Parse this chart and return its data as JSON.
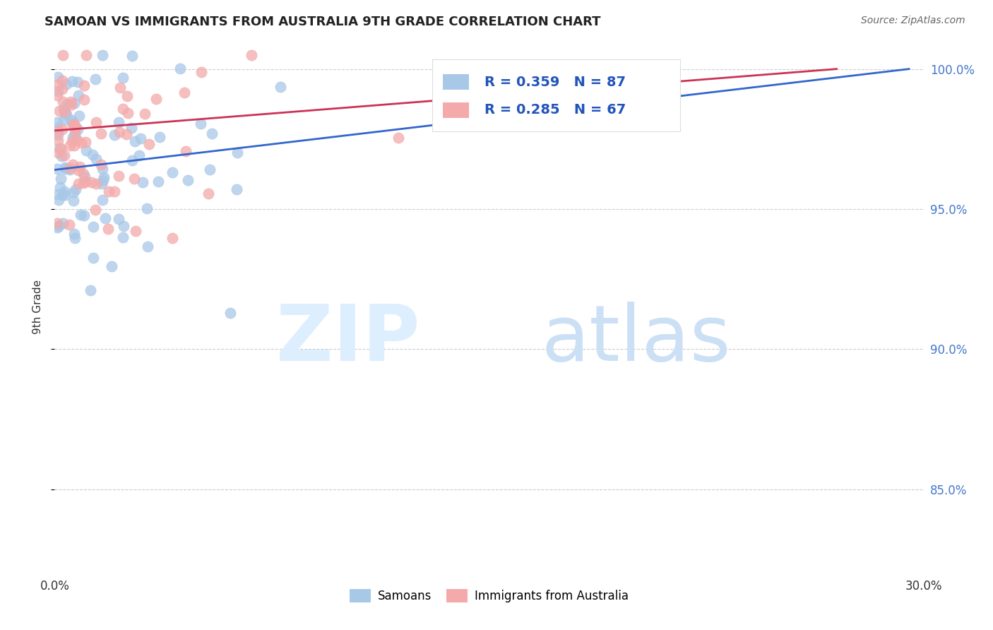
{
  "title": "SAMOAN VS IMMIGRANTS FROM AUSTRALIA 9TH GRADE CORRELATION CHART",
  "source": "Source: ZipAtlas.com",
  "ylabel": "9th Grade",
  "legend_blue_label": "Samoans",
  "legend_pink_label": "Immigrants from Australia",
  "R_blue": 0.359,
  "N_blue": 87,
  "R_pink": 0.285,
  "N_pink": 67,
  "blue_color": "#a8c8e8",
  "pink_color": "#f4aaaa",
  "line_blue": "#3366cc",
  "line_pink": "#cc3355",
  "xmin": 0.0,
  "xmax": 0.3,
  "ymin": 0.82,
  "ymax": 1.01,
  "yticks": [
    0.85,
    0.9,
    0.95,
    1.0
  ],
  "ytick_labels": [
    "85.0%",
    "90.0%",
    "95.0%",
    "100.0%"
  ],
  "xticks": [
    0.0,
    0.05,
    0.1,
    0.15,
    0.2,
    0.25,
    0.3
  ],
  "xtick_labels_show": [
    "0.0%",
    "",
    "",
    "",
    "",
    "",
    "30.0%"
  ],
  "grid_color": "#cccccc",
  "background_color": "#ffffff",
  "blue_line_y0": 0.964,
  "blue_line_y1": 1.0,
  "pink_line_y0": 0.978,
  "pink_line_y1": 1.0
}
